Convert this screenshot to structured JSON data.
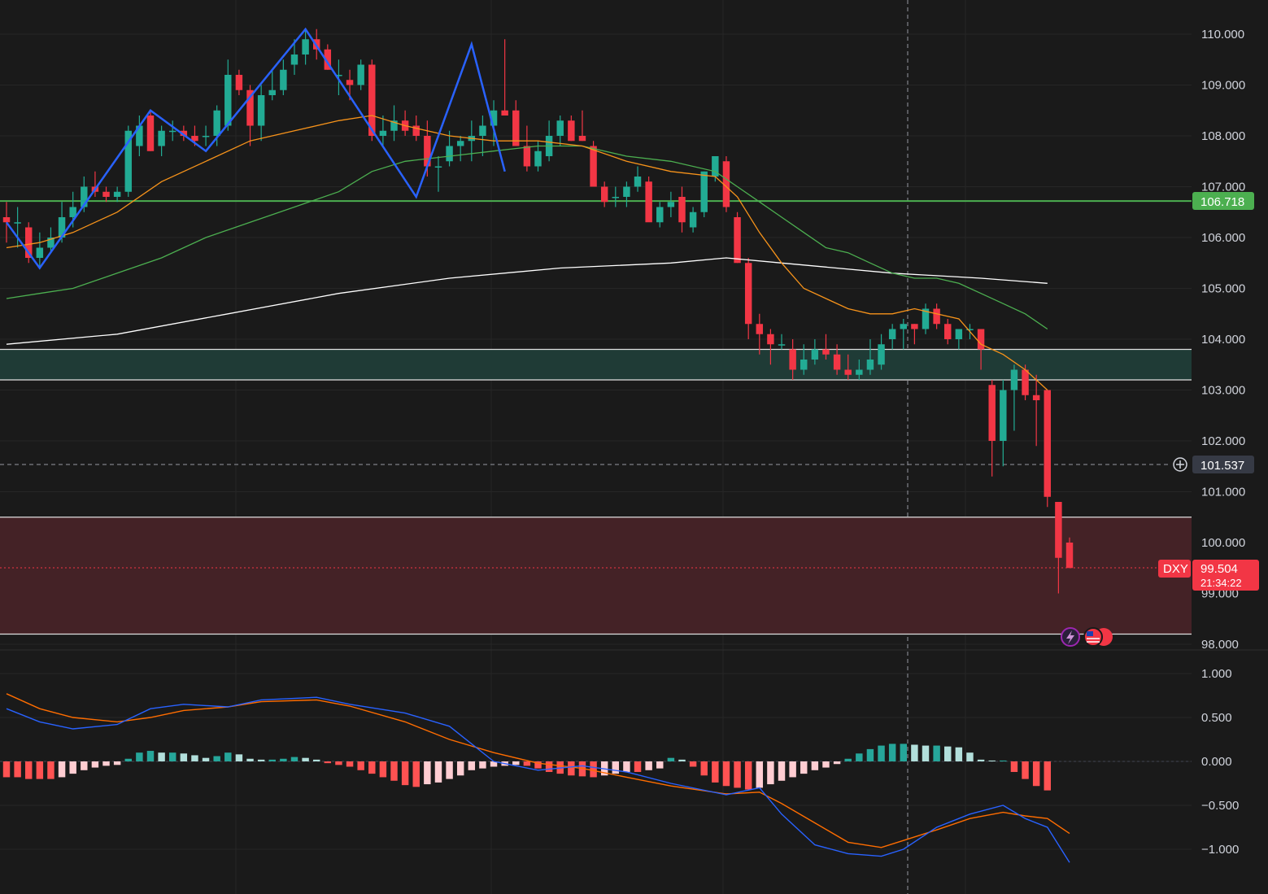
{
  "symbol": "DXY",
  "colors": {
    "background": "#1a1a1a",
    "up": "#22ab94",
    "down": "#f23645",
    "ema_fast": "#f7931a",
    "ema_mid": "#4caf50",
    "sma_slow": "#ffffff",
    "zigzag": "#2962ff",
    "support_line": "#4caf50",
    "macd_line": "#2962ff",
    "signal_line": "#ff6d00"
  },
  "price_tags": {
    "support": "106.718",
    "crosshair": "101.537",
    "last_label": "DXY",
    "last_price": "99.504",
    "countdown": "21:34:22"
  },
  "chart_data": [
    {
      "type": "candlestick",
      "symbol": "DXY",
      "y_ticks": [
        "110.000",
        "109.000",
        "108.000",
        "107.000",
        "106.000",
        "105.000",
        "104.000",
        "103.000",
        "102.000",
        "101.000",
        "100.000",
        "99.000",
        "98.000"
      ],
      "ylim": [
        97.9,
        110.6
      ],
      "candles": [
        [
          106.4,
          106.7,
          105.9,
          106.3
        ],
        [
          106.3,
          106.6,
          105.8,
          106.3
        ],
        [
          106.2,
          106.3,
          105.5,
          105.6
        ],
        [
          105.6,
          106.1,
          105.4,
          105.8
        ],
        [
          105.8,
          106.2,
          105.7,
          106.0
        ],
        [
          106.0,
          106.7,
          105.9,
          106.4
        ],
        [
          106.4,
          106.9,
          106.2,
          106.6
        ],
        [
          106.6,
          107.2,
          106.5,
          107.0
        ],
        [
          107.0,
          107.3,
          106.8,
          106.9
        ],
        [
          106.9,
          107.0,
          106.7,
          106.8
        ],
        [
          106.8,
          107.0,
          106.7,
          106.9
        ],
        [
          106.9,
          108.2,
          106.8,
          108.1
        ],
        [
          107.8,
          108.4,
          107.6,
          108.2
        ],
        [
          108.4,
          108.5,
          107.7,
          107.7
        ],
        [
          107.8,
          108.2,
          107.6,
          108.1
        ],
        [
          108.1,
          108.3,
          107.9,
          108.1
        ],
        [
          108.1,
          108.2,
          107.9,
          108.0
        ],
        [
          108.0,
          108.2,
          107.8,
          107.9
        ],
        [
          108.0,
          108.2,
          107.8,
          108.0
        ],
        [
          108.0,
          108.6,
          107.8,
          108.5
        ],
        [
          108.2,
          109.5,
          108.1,
          109.2
        ],
        [
          109.2,
          109.3,
          108.8,
          108.9
        ],
        [
          108.9,
          109.0,
          107.8,
          108.2
        ],
        [
          108.2,
          109.0,
          107.9,
          108.8
        ],
        [
          108.8,
          109.3,
          108.7,
          108.9
        ],
        [
          108.9,
          109.5,
          108.8,
          109.3
        ],
        [
          109.4,
          109.9,
          109.2,
          109.6
        ],
        [
          109.6,
          110.1,
          109.4,
          109.9
        ],
        [
          109.9,
          110.1,
          109.5,
          109.7
        ],
        [
          109.7,
          109.8,
          109.3,
          109.3
        ],
        [
          109.2,
          109.5,
          108.8,
          109.2
        ],
        [
          109.1,
          109.3,
          108.7,
          109.0
        ],
        [
          109.0,
          109.5,
          108.9,
          109.4
        ],
        [
          109.4,
          109.5,
          107.9,
          108.0
        ],
        [
          108.0,
          108.4,
          107.8,
          108.1
        ],
        [
          108.1,
          108.6,
          107.9,
          108.3
        ],
        [
          108.3,
          108.5,
          108.0,
          108.1
        ],
        [
          108.2,
          108.4,
          107.9,
          108.0
        ],
        [
          108.0,
          108.3,
          107.2,
          107.4
        ],
        [
          107.4,
          107.6,
          106.9,
          107.4
        ],
        [
          107.5,
          108.1,
          107.4,
          107.8
        ],
        [
          107.8,
          108.0,
          107.5,
          107.9
        ],
        [
          107.9,
          108.3,
          107.5,
          108.0
        ],
        [
          108.0,
          108.4,
          107.6,
          108.2
        ],
        [
          108.2,
          108.7,
          107.8,
          108.5
        ],
        [
          108.5,
          109.9,
          108.4,
          108.4
        ],
        [
          108.5,
          108.7,
          107.8,
          107.8
        ],
        [
          107.8,
          108.2,
          107.3,
          107.4
        ],
        [
          107.4,
          107.9,
          107.3,
          107.7
        ],
        [
          107.6,
          108.3,
          107.5,
          108.0
        ],
        [
          108.0,
          108.4,
          107.8,
          108.3
        ],
        [
          108.3,
          108.4,
          107.9,
          107.9
        ],
        [
          108.0,
          108.5,
          107.9,
          107.9
        ],
        [
          107.8,
          107.9,
          107.0,
          107.0
        ],
        [
          107.0,
          107.1,
          106.6,
          106.7
        ],
        [
          106.8,
          107.0,
          106.6,
          106.8
        ],
        [
          106.8,
          107.1,
          106.6,
          107.0
        ],
        [
          107.0,
          107.4,
          106.9,
          107.2
        ],
        [
          107.1,
          107.2,
          106.4,
          106.3
        ],
        [
          106.3,
          106.7,
          106.2,
          106.6
        ],
        [
          106.6,
          106.9,
          106.4,
          106.7
        ],
        [
          106.8,
          107.0,
          106.1,
          106.3
        ],
        [
          106.2,
          106.6,
          106.1,
          106.5
        ],
        [
          106.5,
          107.3,
          106.4,
          107.3
        ],
        [
          107.2,
          107.6,
          107.1,
          107.6
        ],
        [
          107.5,
          107.6,
          106.5,
          106.6
        ],
        [
          106.4,
          106.5,
          105.5,
          105.5
        ],
        [
          105.5,
          105.6,
          104.0,
          104.3
        ],
        [
          104.3,
          104.5,
          103.7,
          104.1
        ],
        [
          104.1,
          104.2,
          103.5,
          103.9
        ],
        [
          103.9,
          104.1,
          103.8,
          103.9
        ],
        [
          103.8,
          104.0,
          103.2,
          103.4
        ],
        [
          103.4,
          103.9,
          103.3,
          103.6
        ],
        [
          103.6,
          104.0,
          103.5,
          103.8
        ],
        [
          103.8,
          104.1,
          103.6,
          103.7
        ],
        [
          103.7,
          103.9,
          103.3,
          103.4
        ],
        [
          103.4,
          103.7,
          103.2,
          103.3
        ],
        [
          103.3,
          103.6,
          103.2,
          103.4
        ],
        [
          103.4,
          104.0,
          103.3,
          103.6
        ],
        [
          103.5,
          104.1,
          103.4,
          103.9
        ],
        [
          104.0,
          104.3,
          103.8,
          104.2
        ],
        [
          104.2,
          104.4,
          103.8,
          104.3
        ],
        [
          104.3,
          104.3,
          103.9,
          104.2
        ],
        [
          104.2,
          104.7,
          104.1,
          104.6
        ],
        [
          104.6,
          104.7,
          104.2,
          104.3
        ],
        [
          104.3,
          104.4,
          103.9,
          104.0
        ],
        [
          104.0,
          104.2,
          103.8,
          104.2
        ],
        [
          104.2,
          104.3,
          104.0,
          104.2
        ],
        [
          104.2,
          104.2,
          103.4,
          103.8
        ],
        [
          103.1,
          103.2,
          101.3,
          102.0
        ],
        [
          102.0,
          103.2,
          101.5,
          103.0
        ],
        [
          103.0,
          103.5,
          102.2,
          103.4
        ],
        [
          103.4,
          103.5,
          102.8,
          102.9
        ],
        [
          102.9,
          103.3,
          101.9,
          102.8
        ],
        [
          103.0,
          103.0,
          100.7,
          100.9
        ],
        [
          100.8,
          100.8,
          99.0,
          99.7
        ],
        [
          100.0,
          100.1,
          99.5,
          99.5
        ]
      ],
      "ema_fast": [
        [
          0,
          105.8
        ],
        [
          3,
          105.9
        ],
        [
          6,
          106.1
        ],
        [
          10,
          106.5
        ],
        [
          14,
          107.1
        ],
        [
          18,
          107.5
        ],
        [
          22,
          107.9
        ],
        [
          26,
          108.1
        ],
        [
          30,
          108.3
        ],
        [
          33,
          108.4
        ],
        [
          36,
          108.2
        ],
        [
          40,
          108.0
        ],
        [
          44,
          107.9
        ],
        [
          48,
          107.9
        ],
        [
          52,
          107.8
        ],
        [
          56,
          107.5
        ],
        [
          60,
          107.3
        ],
        [
          64,
          107.2
        ],
        [
          66,
          106.8
        ],
        [
          68,
          106.1
        ],
        [
          70,
          105.5
        ],
        [
          72,
          105.0
        ],
        [
          74,
          104.8
        ],
        [
          76,
          104.6
        ],
        [
          78,
          104.5
        ],
        [
          80,
          104.5
        ],
        [
          82,
          104.6
        ],
        [
          84,
          104.5
        ],
        [
          86,
          104.4
        ],
        [
          88,
          103.9
        ],
        [
          90,
          103.7
        ],
        [
          92,
          103.4
        ],
        [
          94,
          103.0
        ]
      ],
      "ema_mid": [
        [
          0,
          104.8
        ],
        [
          3,
          104.9
        ],
        [
          6,
          105.0
        ],
        [
          10,
          105.3
        ],
        [
          14,
          105.6
        ],
        [
          18,
          106.0
        ],
        [
          22,
          106.3
        ],
        [
          26,
          106.6
        ],
        [
          30,
          106.9
        ],
        [
          33,
          107.3
        ],
        [
          36,
          107.5
        ],
        [
          40,
          107.6
        ],
        [
          44,
          107.7
        ],
        [
          48,
          107.8
        ],
        [
          52,
          107.8
        ],
        [
          56,
          107.6
        ],
        [
          60,
          107.5
        ],
        [
          64,
          107.3
        ],
        [
          66,
          107.0
        ],
        [
          68,
          106.7
        ],
        [
          70,
          106.4
        ],
        [
          72,
          106.1
        ],
        [
          74,
          105.8
        ],
        [
          76,
          105.7
        ],
        [
          78,
          105.5
        ],
        [
          80,
          105.3
        ],
        [
          82,
          105.2
        ],
        [
          84,
          105.2
        ],
        [
          86,
          105.1
        ],
        [
          88,
          104.9
        ],
        [
          90,
          104.7
        ],
        [
          92,
          104.5
        ],
        [
          94,
          104.2
        ]
      ],
      "sma_slow": [
        [
          0,
          103.9
        ],
        [
          10,
          104.1
        ],
        [
          20,
          104.5
        ],
        [
          30,
          104.9
        ],
        [
          40,
          105.2
        ],
        [
          50,
          105.4
        ],
        [
          60,
          105.5
        ],
        [
          65,
          105.6
        ],
        [
          70,
          105.5
        ],
        [
          80,
          105.3
        ],
        [
          88,
          105.2
        ],
        [
          94,
          105.1
        ]
      ],
      "zigzag": [
        [
          0,
          106.3
        ],
        [
          3,
          105.4
        ],
        [
          13,
          108.5
        ],
        [
          18,
          107.7
        ],
        [
          27,
          110.1
        ],
        [
          37,
          106.8
        ],
        [
          42,
          109.8
        ],
        [
          45,
          107.3
        ]
      ],
      "support_level": 106.718,
      "demand_zone": [
        103.2,
        103.8
      ],
      "lower_zone": [
        98.2,
        100.5
      ],
      "last_price": 99.504
    },
    {
      "type": "macd",
      "y_ticks": [
        "1.000",
        "0.500",
        "0.000",
        "−0.500",
        "−1.000"
      ],
      "ylim": [
        -1.4,
        1.15
      ],
      "histogram": [
        -0.18,
        -0.18,
        -0.2,
        -0.2,
        -0.2,
        -0.18,
        -0.14,
        -0.1,
        -0.07,
        -0.05,
        -0.04,
        0.03,
        0.1,
        0.12,
        0.1,
        0.1,
        0.09,
        0.07,
        0.04,
        0.06,
        0.1,
        0.08,
        0.03,
        0.02,
        0.02,
        0.03,
        0.05,
        0.04,
        0.02,
        -0.02,
        -0.04,
        -0.06,
        -0.1,
        -0.14,
        -0.18,
        -0.22,
        -0.27,
        -0.29,
        -0.26,
        -0.24,
        -0.2,
        -0.16,
        -0.1,
        -0.08,
        -0.06,
        -0.05,
        -0.04,
        -0.05,
        -0.08,
        -0.12,
        -0.14,
        -0.16,
        -0.17,
        -0.18,
        -0.16,
        -0.14,
        -0.12,
        -0.12,
        -0.1,
        -0.08,
        0.04,
        0.02,
        -0.06,
        -0.16,
        -0.24,
        -0.28,
        -0.3,
        -0.32,
        -0.3,
        -0.26,
        -0.22,
        -0.18,
        -0.14,
        -0.1,
        -0.07,
        -0.03,
        0.03,
        0.09,
        0.14,
        0.18,
        0.2,
        0.2,
        0.19,
        0.18,
        0.18,
        0.17,
        0.16,
        0.1,
        0.02,
        0.01,
        0.01,
        -0.12,
        -0.2,
        -0.28,
        -0.33
      ],
      "macd": [
        [
          0,
          0.6
        ],
        [
          3,
          0.45
        ],
        [
          6,
          0.37
        ],
        [
          10,
          0.42
        ],
        [
          13,
          0.6
        ],
        [
          16,
          0.65
        ],
        [
          20,
          0.62
        ],
        [
          23,
          0.7
        ],
        [
          28,
          0.73
        ],
        [
          31,
          0.65
        ],
        [
          36,
          0.55
        ],
        [
          40,
          0.4
        ],
        [
          44,
          0.0
        ],
        [
          48,
          -0.1
        ],
        [
          52,
          -0.05
        ],
        [
          56,
          -0.12
        ],
        [
          60,
          -0.25
        ],
        [
          65,
          -0.38
        ],
        [
          68,
          -0.3
        ],
        [
          70,
          -0.6
        ],
        [
          73,
          -0.95
        ],
        [
          76,
          -1.05
        ],
        [
          79,
          -1.08
        ],
        [
          81,
          -1.0
        ],
        [
          84,
          -0.75
        ],
        [
          87,
          -0.6
        ],
        [
          90,
          -0.5
        ],
        [
          92,
          -0.65
        ],
        [
          94,
          -0.75
        ],
        [
          96,
          -1.15
        ]
      ],
      "signal": [
        [
          0,
          0.77
        ],
        [
          3,
          0.6
        ],
        [
          6,
          0.5
        ],
        [
          10,
          0.45
        ],
        [
          13,
          0.5
        ],
        [
          16,
          0.58
        ],
        [
          20,
          0.62
        ],
        [
          23,
          0.68
        ],
        [
          28,
          0.7
        ],
        [
          31,
          0.63
        ],
        [
          36,
          0.45
        ],
        [
          40,
          0.25
        ],
        [
          44,
          0.1
        ],
        [
          48,
          -0.02
        ],
        [
          52,
          -0.08
        ],
        [
          56,
          -0.18
        ],
        [
          60,
          -0.28
        ],
        [
          65,
          -0.37
        ],
        [
          68,
          -0.35
        ],
        [
          70,
          -0.48
        ],
        [
          73,
          -0.7
        ],
        [
          76,
          -0.92
        ],
        [
          79,
          -0.98
        ],
        [
          81,
          -0.9
        ],
        [
          84,
          -0.78
        ],
        [
          87,
          -0.65
        ],
        [
          90,
          -0.58
        ],
        [
          92,
          -0.62
        ],
        [
          94,
          -0.65
        ],
        [
          96,
          -0.82
        ]
      ]
    }
  ]
}
